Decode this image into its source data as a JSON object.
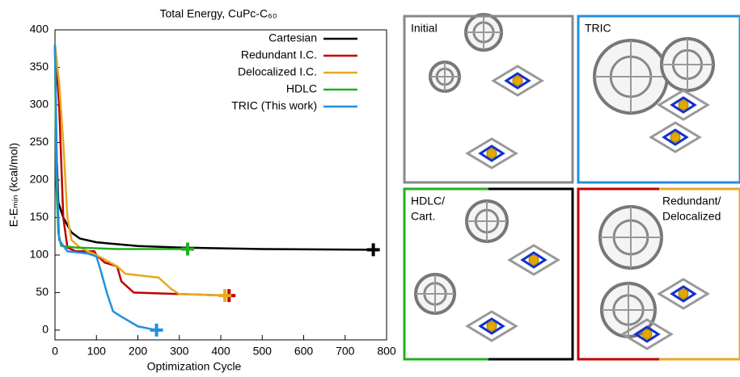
{
  "chart_data": {
    "type": "line",
    "title": "Total Energy, CuPc-C₆₀",
    "x_label": "Optimization Cycle",
    "y_label": "E-Eₘᵢₙ (kcal/mol)",
    "xlim": [
      0,
      800
    ],
    "xticks": [
      0,
      100,
      200,
      300,
      400,
      500,
      600,
      700,
      800
    ],
    "ylim": [
      -13,
      400
    ],
    "yticks": [
      0,
      50,
      100,
      150,
      200,
      250,
      300,
      350,
      400
    ],
    "legend": "upper right",
    "series": [
      {
        "name": "Cartesian",
        "color": "#000000",
        "x": [
          0,
          3,
          8,
          20,
          40,
          60,
          100,
          200,
          300,
          500,
          768
        ],
        "values": [
          380,
          250,
          170,
          150,
          130,
          122,
          117,
          112,
          110,
          108,
          107
        ]
      },
      {
        "name": "Redundant I.C.",
        "color": "#c00000",
        "x": [
          0,
          10,
          20,
          30,
          50,
          95,
          100,
          120,
          150,
          160,
          190,
          300,
          420
        ],
        "values": [
          380,
          300,
          150,
          110,
          105,
          105,
          100,
          90,
          85,
          65,
          50,
          48,
          46
        ]
      },
      {
        "name": "Delocalized I.C.",
        "color": "#e8a820",
        "x": [
          0,
          10,
          20,
          30,
          40,
          60,
          100,
          150,
          170,
          250,
          280,
          300,
          410
        ],
        "values": [
          380,
          330,
          250,
          150,
          120,
          110,
          100,
          85,
          75,
          70,
          55,
          48,
          46
        ]
      },
      {
        "name": "HDLC",
        "color": "#20b020",
        "x": [
          0,
          3,
          8,
          15,
          50,
          150,
          320
        ],
        "values": [
          380,
          200,
          130,
          112,
          110,
          108,
          108
        ]
      },
      {
        "name": "TRIC (This work)",
        "color": "#2090e0",
        "x": [
          0,
          5,
          10,
          30,
          80,
          100,
          110,
          125,
          140,
          160,
          200,
          245
        ],
        "values": [
          380,
          200,
          120,
          105,
          102,
          98,
          80,
          50,
          25,
          18,
          5,
          0
        ]
      }
    ]
  },
  "panels": [
    {
      "label": [
        "Initial"
      ]
    },
    {
      "label": [
        "TRIC"
      ]
    },
    {
      "label": [
        "HDLC/",
        "Cart."
      ]
    },
    {
      "label": [
        "Redundant/",
        "Delocalized"
      ]
    }
  ]
}
